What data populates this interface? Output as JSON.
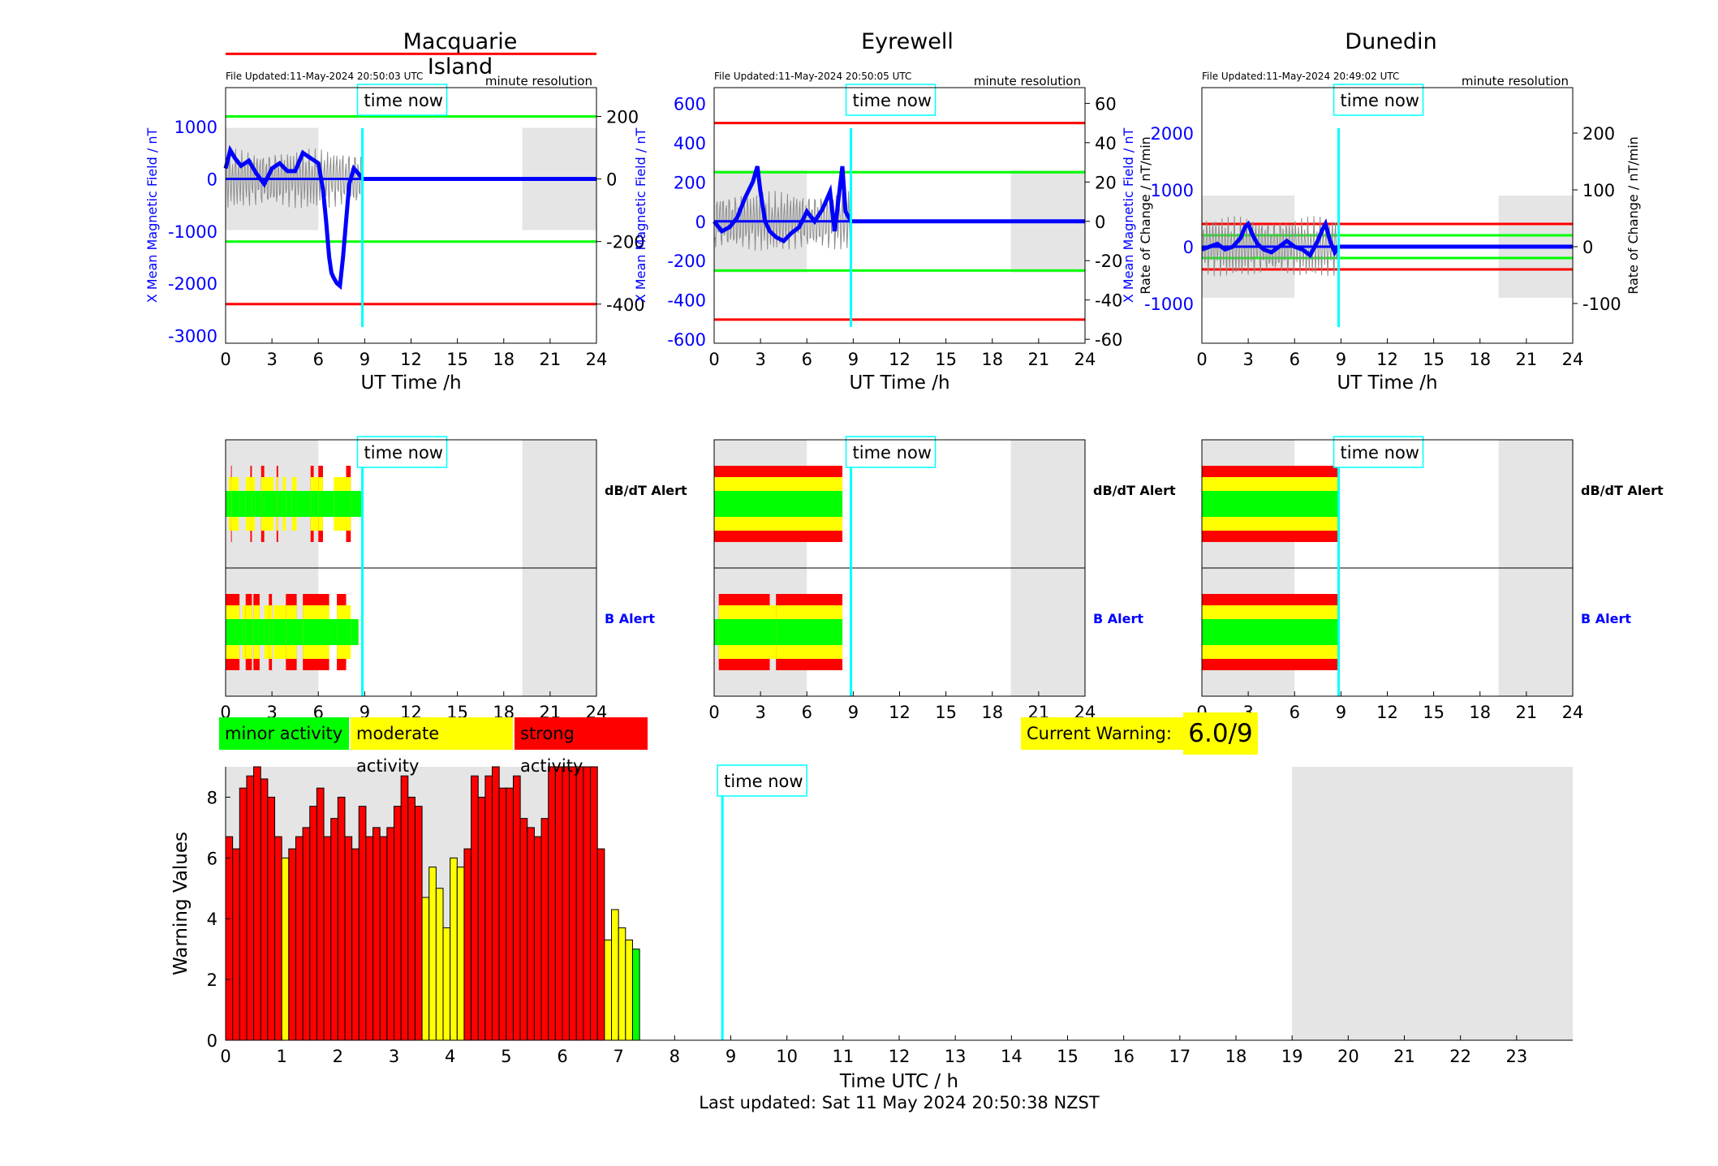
{
  "stations": [
    {
      "name": "Macquarie Island",
      "file_updated": "File Updated:11-May-2024 20:50:03 UTC",
      "resolution": "minute resolution",
      "time_now_label": "time now",
      "left_axis_label": "X Mean Magnetic Field / nT",
      "right_axis_label": "",
      "x_axis_label": "UT Time /h",
      "left_ticks": [
        "-3000",
        "-2000",
        "-1000",
        "0",
        "1000"
      ],
      "right_ticks": [
        "-400",
        "-200",
        "0",
        "200"
      ],
      "x_ticks": [
        "0",
        "3",
        "6",
        "9",
        "12",
        "15",
        "18",
        "21",
        "24"
      ],
      "dbdt_label": "dB/dT Alert",
      "b_label": "B Alert"
    },
    {
      "name": "Eyrewell",
      "file_updated": "File Updated:11-May-2024 20:50:05 UTC",
      "resolution": "minute resolution",
      "time_now_label": "time now",
      "left_axis_label": "X Mean Magnetic Field / nT",
      "right_axis_label": "Rate of Change / nT/min",
      "x_axis_label": "UT Time /h",
      "left_ticks": [
        "-600",
        "-400",
        "-200",
        "0",
        "200",
        "400",
        "600"
      ],
      "right_ticks": [
        "-60",
        "-40",
        "-20",
        "0",
        "20",
        "40",
        "60"
      ],
      "x_ticks": [
        "0",
        "3",
        "6",
        "9",
        "12",
        "15",
        "18",
        "21",
        "24"
      ],
      "dbdt_label": "dB/dT Alert",
      "b_label": "B Alert"
    },
    {
      "name": "Dunedin",
      "file_updated": "File Updated:11-May-2024 20:49:02 UTC",
      "resolution": "minute resolution",
      "time_now_label": "time now",
      "left_axis_label": "X Mean Magnetic Field / nT",
      "right_axis_label": "Rate of Change / nT/min",
      "x_axis_label": "UT Time /h",
      "left_ticks": [
        "-1000",
        "0",
        "1000",
        "2000"
      ],
      "right_ticks": [
        "-100",
        "0",
        "100",
        "200"
      ],
      "x_ticks": [
        "0",
        "3",
        "6",
        "9",
        "12",
        "15",
        "18",
        "21",
        "24"
      ],
      "dbdt_label": "dB/dT Alert",
      "b_label": "B Alert"
    }
  ],
  "legend": {
    "minor": "minor activity",
    "moderate": "moderate activity",
    "strong": "strong activity",
    "colors": {
      "minor": "#00ff00",
      "moderate": "#ffff00",
      "strong": "#ff0000",
      "highlight": "#00ffff",
      "night": "#e5e5e5",
      "field": "#0000ff"
    }
  },
  "current_warning": {
    "label": "Current Warning:",
    "value": "6.0/9"
  },
  "chart_data": [
    {
      "type": "line",
      "title": "Macquarie Island",
      "xlabel": "UT Time /h",
      "ylabel": "X Mean Magnetic Field / nT",
      "xlim": [
        0,
        24
      ],
      "ylim": [
        -3150,
        1750
      ],
      "y2lim": [
        -525,
        292
      ],
      "time_now": 8.85,
      "night_shading": [
        [
          0,
          6
        ],
        [
          19.2,
          24
        ]
      ],
      "thresholds": [
        -400,
        -200,
        200,
        400
      ],
      "series": [
        {
          "x": [
            0,
            0.3,
            0.6,
            1.0,
            1.5,
            2.0,
            2.5,
            3.0,
            3.5,
            4.0,
            4.5,
            5.0,
            5.5,
            6.0,
            6.3,
            6.5,
            6.7,
            6.85,
            7.0,
            7.2,
            7.4,
            7.6,
            7.8,
            8.0,
            8.3,
            8.6,
            8.85,
            24
          ],
          "y": [
            200,
            550,
            400,
            250,
            350,
            100,
            -100,
            200,
            300,
            150,
            150,
            500,
            400,
            300,
            -200,
            -800,
            -1500,
            -1800,
            -1900,
            -2000,
            -2050,
            -1500,
            -800,
            -100,
            200,
            100,
            0,
            0
          ]
        }
      ]
    },
    {
      "type": "line",
      "title": "Eyrewell",
      "xlabel": "UT Time /h",
      "ylabel": "X Mean Magnetic Field / nT",
      "y2label": "Rate of Change / nT/min",
      "xlim": [
        0,
        24
      ],
      "ylim": [
        -620,
        680
      ],
      "y2lim": [
        -62,
        68
      ],
      "time_now": 8.85,
      "night_shading": [
        [
          0,
          6
        ],
        [
          19.2,
          24
        ]
      ],
      "thresholds": [
        -50,
        -25,
        25,
        50
      ],
      "series": [
        {
          "x": [
            0,
            0.5,
            1.0,
            1.5,
            2.0,
            2.5,
            2.8,
            3.0,
            3.3,
            3.6,
            4.0,
            4.5,
            5.0,
            5.5,
            6.0,
            6.5,
            7.0,
            7.5,
            7.8,
            8.0,
            8.3,
            8.5,
            8.85,
            24
          ],
          "y": [
            0,
            -50,
            -30,
            20,
            120,
            200,
            280,
            150,
            0,
            -50,
            -80,
            -100,
            -60,
            -30,
            50,
            0,
            60,
            150,
            -50,
            80,
            280,
            50,
            0,
            0
          ]
        }
      ]
    },
    {
      "type": "line",
      "title": "Dunedin",
      "xlabel": "UT Time /h",
      "ylabel": "X Mean Magnetic Field / nT",
      "y2label": "Rate of Change / nT/min",
      "xlim": [
        0,
        24
      ],
      "ylim": [
        -1700,
        2800
      ],
      "y2lim": [
        -170,
        280
      ],
      "time_now": 8.85,
      "night_shading": [
        [
          0,
          6
        ],
        [
          19.2,
          24
        ]
      ],
      "thresholds": [
        -40,
        -20,
        20,
        40
      ],
      "series": [
        {
          "x": [
            0,
            0.5,
            1.0,
            1.5,
            2.0,
            2.5,
            2.8,
            3.0,
            3.3,
            3.6,
            4.0,
            4.5,
            5.0,
            5.5,
            6.0,
            6.5,
            7.0,
            7.5,
            7.8,
            8.0,
            8.3,
            8.6,
            8.85,
            24
          ],
          "y": [
            -50,
            0,
            50,
            -50,
            0,
            150,
            350,
            400,
            200,
            50,
            -50,
            -100,
            0,
            100,
            0,
            -50,
            -150,
            100,
            300,
            400,
            100,
            -100,
            0,
            0
          ]
        }
      ]
    },
    {
      "type": "bar",
      "xlabel": "Time UTC / h",
      "ylabel": "Warning Values",
      "xlim": [
        0,
        24
      ],
      "ylim": [
        0,
        9
      ],
      "time_now": 8.85,
      "night_shading": [
        [
          0,
          6
        ],
        [
          19,
          24
        ]
      ],
      "bin_width_h": 0.125,
      "x_ticks": [
        "0",
        "1",
        "2",
        "3",
        "4",
        "5",
        "6",
        "7",
        "8",
        "9",
        "10",
        "11",
        "12",
        "13",
        "14",
        "15",
        "16",
        "17",
        "18",
        "19",
        "20",
        "21",
        "22",
        "23"
      ],
      "y_ticks": [
        "0",
        "2",
        "4",
        "6",
        "8"
      ],
      "values": [
        6.7,
        6.3,
        8.3,
        8.7,
        9.0,
        8.6,
        8.0,
        6.7,
        6.0,
        6.3,
        6.7,
        7.0,
        7.7,
        8.3,
        6.7,
        7.3,
        8.0,
        6.7,
        6.3,
        7.7,
        6.7,
        7.0,
        6.7,
        7.0,
        7.7,
        8.7,
        8.0,
        7.7,
        4.7,
        5.7,
        5.0,
        3.7,
        6.0,
        5.7,
        6.3,
        8.7,
        8.0,
        8.7,
        9.0,
        8.3,
        8.3,
        8.7,
        7.3,
        7.0,
        6.7,
        7.3,
        9.0,
        9.0,
        9.0,
        9.0,
        9.0,
        9.0,
        9.0,
        6.3,
        3.3,
        4.3,
        3.7,
        3.3,
        3.0
      ],
      "levels": [
        "s",
        "s",
        "s",
        "s",
        "s",
        "s",
        "s",
        "s",
        "m",
        "s",
        "s",
        "s",
        "s",
        "s",
        "s",
        "s",
        "s",
        "s",
        "s",
        "s",
        "s",
        "s",
        "s",
        "s",
        "s",
        "s",
        "s",
        "s",
        "m",
        "m",
        "m",
        "m",
        "m",
        "m",
        "s",
        "s",
        "s",
        "s",
        "s",
        "s",
        "s",
        "s",
        "s",
        "s",
        "s",
        "s",
        "s",
        "s",
        "s",
        "s",
        "s",
        "s",
        "s",
        "s",
        "m",
        "m",
        "m",
        "m",
        "n"
      ]
    }
  ],
  "alert_strips": {
    "dbdt": [
      [
        [
          "n",
          0.0,
          0.2
        ],
        [
          "m",
          0.2,
          0.35
        ],
        [
          "s",
          0.35,
          0.4
        ],
        [
          "m",
          0.4,
          0.85
        ],
        [
          "n",
          0.85,
          1.3
        ],
        [
          "m",
          1.3,
          1.6
        ],
        [
          "s",
          1.6,
          1.7
        ],
        [
          "m",
          1.7,
          1.9
        ],
        [
          "n",
          1.9,
          2.3
        ],
        [
          "s",
          2.3,
          2.5
        ],
        [
          "m",
          2.5,
          3.1
        ],
        [
          "n",
          3.1,
          3.3
        ],
        [
          "s",
          3.3,
          3.4
        ],
        [
          "n",
          3.4,
          3.7
        ],
        [
          "m",
          3.7,
          3.9
        ],
        [
          "n",
          3.9,
          4.3
        ],
        [
          "m",
          4.3,
          4.6
        ],
        [
          "n",
          4.6,
          5.5
        ],
        [
          "s",
          5.5,
          5.7
        ],
        [
          "m",
          5.7,
          6.0
        ],
        [
          "s",
          6.0,
          6.3
        ],
        [
          "n",
          6.3,
          7.0
        ],
        [
          "m",
          7.0,
          7.8
        ],
        [
          "s",
          7.8,
          8.1
        ],
        [
          "n",
          8.1,
          8.8
        ]
      ],
      [
        [
          "s",
          0,
          8.3
        ]
      ],
      [
        [
          "s",
          0,
          8.9
        ]
      ]
    ],
    "b": [
      [
        [
          "s",
          0.0,
          0.9
        ],
        [
          "n",
          0.9,
          1.1
        ],
        [
          "m",
          1.1,
          1.3
        ],
        [
          "s",
          1.3,
          1.7
        ],
        [
          "n",
          1.7,
          1.8
        ],
        [
          "s",
          1.8,
          2.2
        ],
        [
          "n",
          2.2,
          2.5
        ],
        [
          "m",
          2.5,
          2.8
        ],
        [
          "s",
          2.8,
          3.0
        ],
        [
          "n",
          3.0,
          3.1
        ],
        [
          "m",
          3.1,
          3.9
        ],
        [
          "s",
          3.9,
          4.6
        ],
        [
          "n",
          4.6,
          5.0
        ],
        [
          "s",
          5.0,
          6.7
        ],
        [
          "n",
          6.7,
          7.2
        ],
        [
          "s",
          7.2,
          7.8
        ],
        [
          "m",
          7.8,
          8.1
        ],
        [
          "n",
          8.1,
          8.6
        ]
      ],
      [
        [
          "n",
          0,
          0.3
        ],
        [
          "s",
          0.3,
          3.6
        ],
        [
          "m",
          3.6,
          4.0
        ],
        [
          "s",
          4.0,
          8.3
        ]
      ],
      [
        [
          "s",
          0,
          8.9
        ]
      ]
    ]
  },
  "footer": {
    "last_updated": "Last updated: Sat 11 May 2024 20:50:38 NZST"
  }
}
